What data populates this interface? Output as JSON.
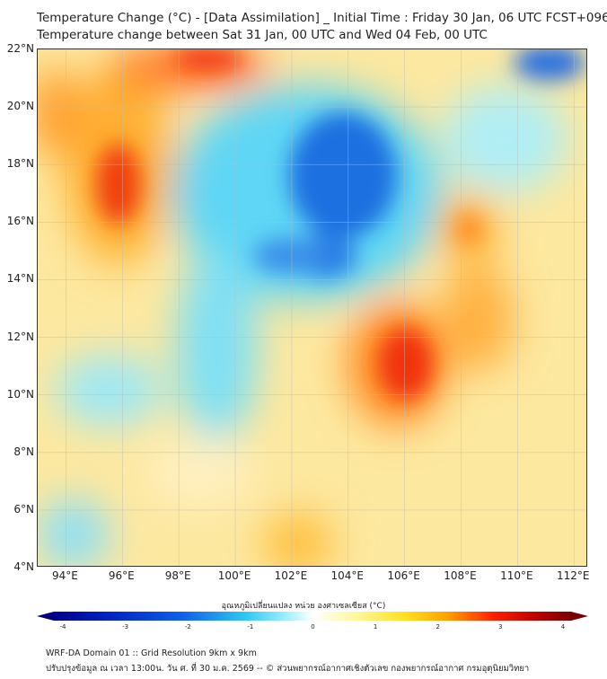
{
  "title_line1": "Temperature Change (°C) - [Data Assimilation] _ Initial Time : Friday 30 Jan, 06 UTC FCST+096",
  "title_line2": "Temperature change between Sat 31 Jan, 00 UTC and Wed 04 Feb, 00 UTC",
  "map": {
    "lat_labels": [
      {
        "v": 22,
        "t": "22°N"
      },
      {
        "v": 20,
        "t": "20°N"
      },
      {
        "v": 18,
        "t": "18°N"
      },
      {
        "v": 16,
        "t": "16°N"
      },
      {
        "v": 14,
        "t": "14°N"
      },
      {
        "v": 12,
        "t": "12°N"
      },
      {
        "v": 10,
        "t": "10°N"
      },
      {
        "v": 8,
        "t": "8°N"
      },
      {
        "v": 6,
        "t": "6°N"
      },
      {
        "v": 4,
        "t": "4°N"
      }
    ],
    "lon_labels": [
      {
        "v": 94,
        "t": "94°E"
      },
      {
        "v": 96,
        "t": "96°E"
      },
      {
        "v": 98,
        "t": "98°E"
      },
      {
        "v": 100,
        "t": "100°E"
      },
      {
        "v": 102,
        "t": "102°E"
      },
      {
        "v": 104,
        "t": "104°E"
      },
      {
        "v": 106,
        "t": "106°E"
      },
      {
        "v": 108,
        "t": "108°E"
      },
      {
        "v": 110,
        "t": "110°E"
      },
      {
        "v": 112,
        "t": "112°E"
      }
    ],
    "lon_range": [
      93.0,
      112.5
    ],
    "lat_range": [
      4,
      22
    ]
  },
  "colorbar": {
    "title": "อุณหภูมิเปลี่ยนแปลง หน่วย องศาเซลเซียส (°C)",
    "range": [
      -4,
      4
    ],
    "ticks": [
      "-4",
      "-3",
      "-2",
      "-1",
      "0",
      "1",
      "2",
      "3",
      "4"
    ]
  },
  "footer": {
    "line1": "WRF-DA Domain 01 :: Grid Resolution 9km x 9km",
    "line2": "ปรับปรุงข้อมูล ณ เวลา 13:00น. วัน ศ. ที่ 30 ม.ค. 2569 -- © ส่วนพยากรณ์อากาศเชิงตัวเลข กองพยากรณ์อากาศ กรมอุตุนิยมวิทยา"
  }
}
